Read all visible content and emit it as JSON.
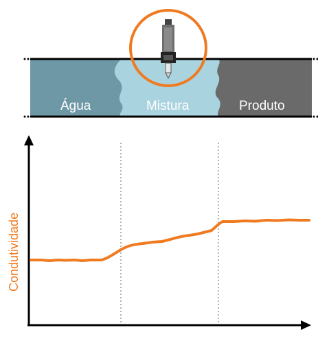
{
  "zones": {
    "water": "Água",
    "mixture": "Mistura",
    "product": "Produto"
  },
  "colors": {
    "water": "#6f98a6",
    "mixture": "#aad3e0",
    "product": "#6a6a6a",
    "accent": "#f07a20",
    "axis": "#000000",
    "guide": "#9a9a9a"
  },
  "chart_data": {
    "type": "line",
    "title": "",
    "xlabel": "",
    "ylabel": "Condutividade",
    "series": [
      {
        "values_profile": "flat low → rising through mixture → flat high"
      }
    ]
  }
}
